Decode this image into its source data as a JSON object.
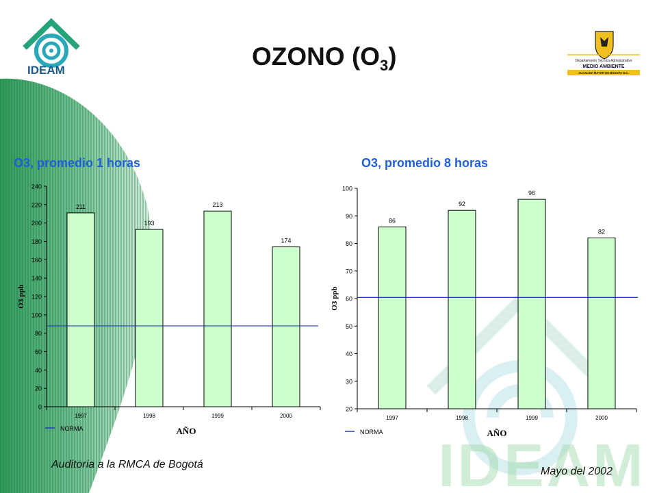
{
  "page": {
    "title_main": "OZONO (O",
    "title_sub": "3",
    "title_close": ")",
    "footer_left": "Auditoria a la RMCA de Bogotá",
    "footer_right": "Mayo del 2002",
    "colors": {
      "subtitle": "#1f5fd6",
      "bar_fill": "#ccffcc",
      "norma_line": "#1f3fb0",
      "band": "#2f9a5a"
    }
  },
  "logos": {
    "ideam_text": "IDEAM",
    "watermark_text": "IDEAM",
    "dama_line1": "Departamento Técnico Administrativo",
    "dama_line2": "MEDIO AMBIENTE",
    "dama_line3": "ALCALDIA MAYOR DE BOGOTA D.C."
  },
  "chart_data": [
    {
      "type": "bar",
      "title": "O3, promedio 1 horas",
      "categories": [
        "1997",
        "1998",
        "1999",
        "2000"
      ],
      "values": [
        211,
        193,
        213,
        174
      ],
      "data_labels": [
        "211",
        "193",
        "213",
        "174"
      ],
      "xlabel": "AÑO",
      "ylabel": "O3 ppb",
      "ylim": [
        0,
        240
      ],
      "yticks": [
        "0",
        "20",
        "40",
        "60",
        "80",
        "100",
        "120",
        "140",
        "160",
        "180",
        "200",
        "220",
        "240"
      ],
      "norma": {
        "name": "NORMA",
        "value": 88
      },
      "legend": "bottom-left",
      "grid": false
    },
    {
      "type": "bar",
      "title": "O3, promedio 8 horas",
      "categories": [
        "1997",
        "1998",
        "1999",
        "2000"
      ],
      "values": [
        86,
        92,
        96,
        82
      ],
      "data_labels": [
        "86",
        "92",
        "96",
        "82"
      ],
      "xlabel": "AÑO",
      "ylabel": "O3 ppb",
      "ylim": [
        20,
        100
      ],
      "yticks": [
        "20",
        "30",
        "40",
        "50",
        "60",
        "70",
        "80",
        "90",
        "100"
      ],
      "norma": {
        "name": "NORMA",
        "value": 60.4
      },
      "legend": "bottom-left",
      "grid": false
    }
  ]
}
